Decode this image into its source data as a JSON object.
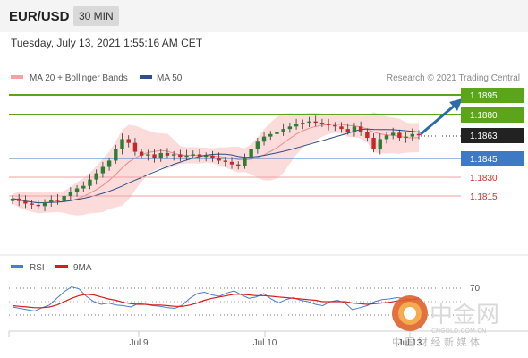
{
  "header": {
    "pair": "EUR/USD",
    "timeframe": "30 MIN",
    "timestamp": "Tuesday, July 13, 2021 1:55:16 AM CET"
  },
  "legend": {
    "ma20": "MA 20 + Bollinger Bands",
    "ma50": "MA 50",
    "credit": "Research © 2021 Trading Central"
  },
  "rsi_legend": {
    "rsi": "RSI",
    "ma9": "9MA",
    "level": "70"
  },
  "watermark": {
    "chinese": "中金网",
    "site": "CNGOLD.COM.CN",
    "slogan": "中 国 财 经 新 媒 体"
  },
  "colors": {
    "resistance": "#5aa51a",
    "support": "#3e79c6",
    "target": "#dc2b2b",
    "current": "#222222",
    "arrow": "#2d6ca8",
    "up": "#2e7d32",
    "down": "#c62828",
    "band": "#fbd2d2"
  },
  "chart_data": [
    {
      "type": "candlestick",
      "title": "EUR/USD 30 MIN",
      "x_ticks": [
        "Jul 9",
        "Jul 10",
        "Jul 13"
      ],
      "ylim": [
        1.18,
        1.19
      ],
      "close_series": [
        1.1813,
        1.1811,
        1.1809,
        1.1808,
        1.1807,
        1.181,
        1.1812,
        1.1811,
        1.1815,
        1.1818,
        1.1821,
        1.1823,
        1.1828,
        1.1833,
        1.1838,
        1.1843,
        1.1852,
        1.186,
        1.1857,
        1.185,
        1.1847,
        1.1848,
        1.1845,
        1.1849,
        1.1847,
        1.1848,
        1.1846,
        1.1847,
        1.1848,
        1.1846,
        1.1847,
        1.1845,
        1.1843,
        1.1842,
        1.184,
        1.1839,
        1.1845,
        1.1852,
        1.1858,
        1.1862,
        1.1864,
        1.1866,
        1.1868,
        1.187,
        1.1872,
        1.1873,
        1.1874,
        1.1873,
        1.1872,
        1.1871,
        1.187,
        1.1868,
        1.1866,
        1.187,
        1.1866,
        1.1861,
        1.1852,
        1.186,
        1.1863,
        1.1865,
        1.1861,
        1.1862,
        1.1864,
        1.1863
      ],
      "levels": [
        {
          "value": "1.1895",
          "role": "resistance"
        },
        {
          "value": "1.1880",
          "role": "resistance"
        },
        {
          "value": "1.1863",
          "role": "current"
        },
        {
          "value": "1.1845",
          "role": "support"
        },
        {
          "value": "1.1830",
          "role": "target"
        },
        {
          "value": "1.1815",
          "role": "target"
        }
      ],
      "series": [
        {
          "name": "MA 20 + Bollinger Bands"
        },
        {
          "name": "MA 50"
        }
      ]
    },
    {
      "type": "line",
      "title": "RSI",
      "series": [
        {
          "name": "RSI",
          "values": [
            42,
            40,
            38,
            36,
            41,
            45,
            55,
            65,
            72,
            69,
            58,
            50,
            46,
            48,
            45,
            44,
            42,
            47,
            46,
            44,
            43,
            41,
            40,
            45,
            55,
            62,
            64,
            60,
            58,
            63,
            66,
            60,
            55,
            57,
            62,
            54,
            48,
            53,
            56,
            52,
            50,
            46,
            44,
            50,
            52,
            48,
            38,
            41,
            44,
            50,
            53,
            54,
            56,
            55,
            53,
            56
          ]
        },
        {
          "name": "9MA",
          "values": [
            44,
            43,
            42,
            41,
            41,
            42,
            45,
            50,
            55,
            59,
            61,
            60,
            57,
            54,
            52,
            49,
            47,
            46,
            46,
            45,
            45,
            44,
            43,
            43,
            45,
            48,
            52,
            55,
            57,
            59,
            61,
            61,
            60,
            59,
            59,
            58,
            57,
            56,
            55,
            54,
            53,
            52,
            50,
            50,
            50,
            50,
            48,
            47,
            46,
            47,
            48,
            49,
            51,
            52,
            53,
            54
          ]
        }
      ],
      "levels": [
        "70"
      ]
    }
  ]
}
